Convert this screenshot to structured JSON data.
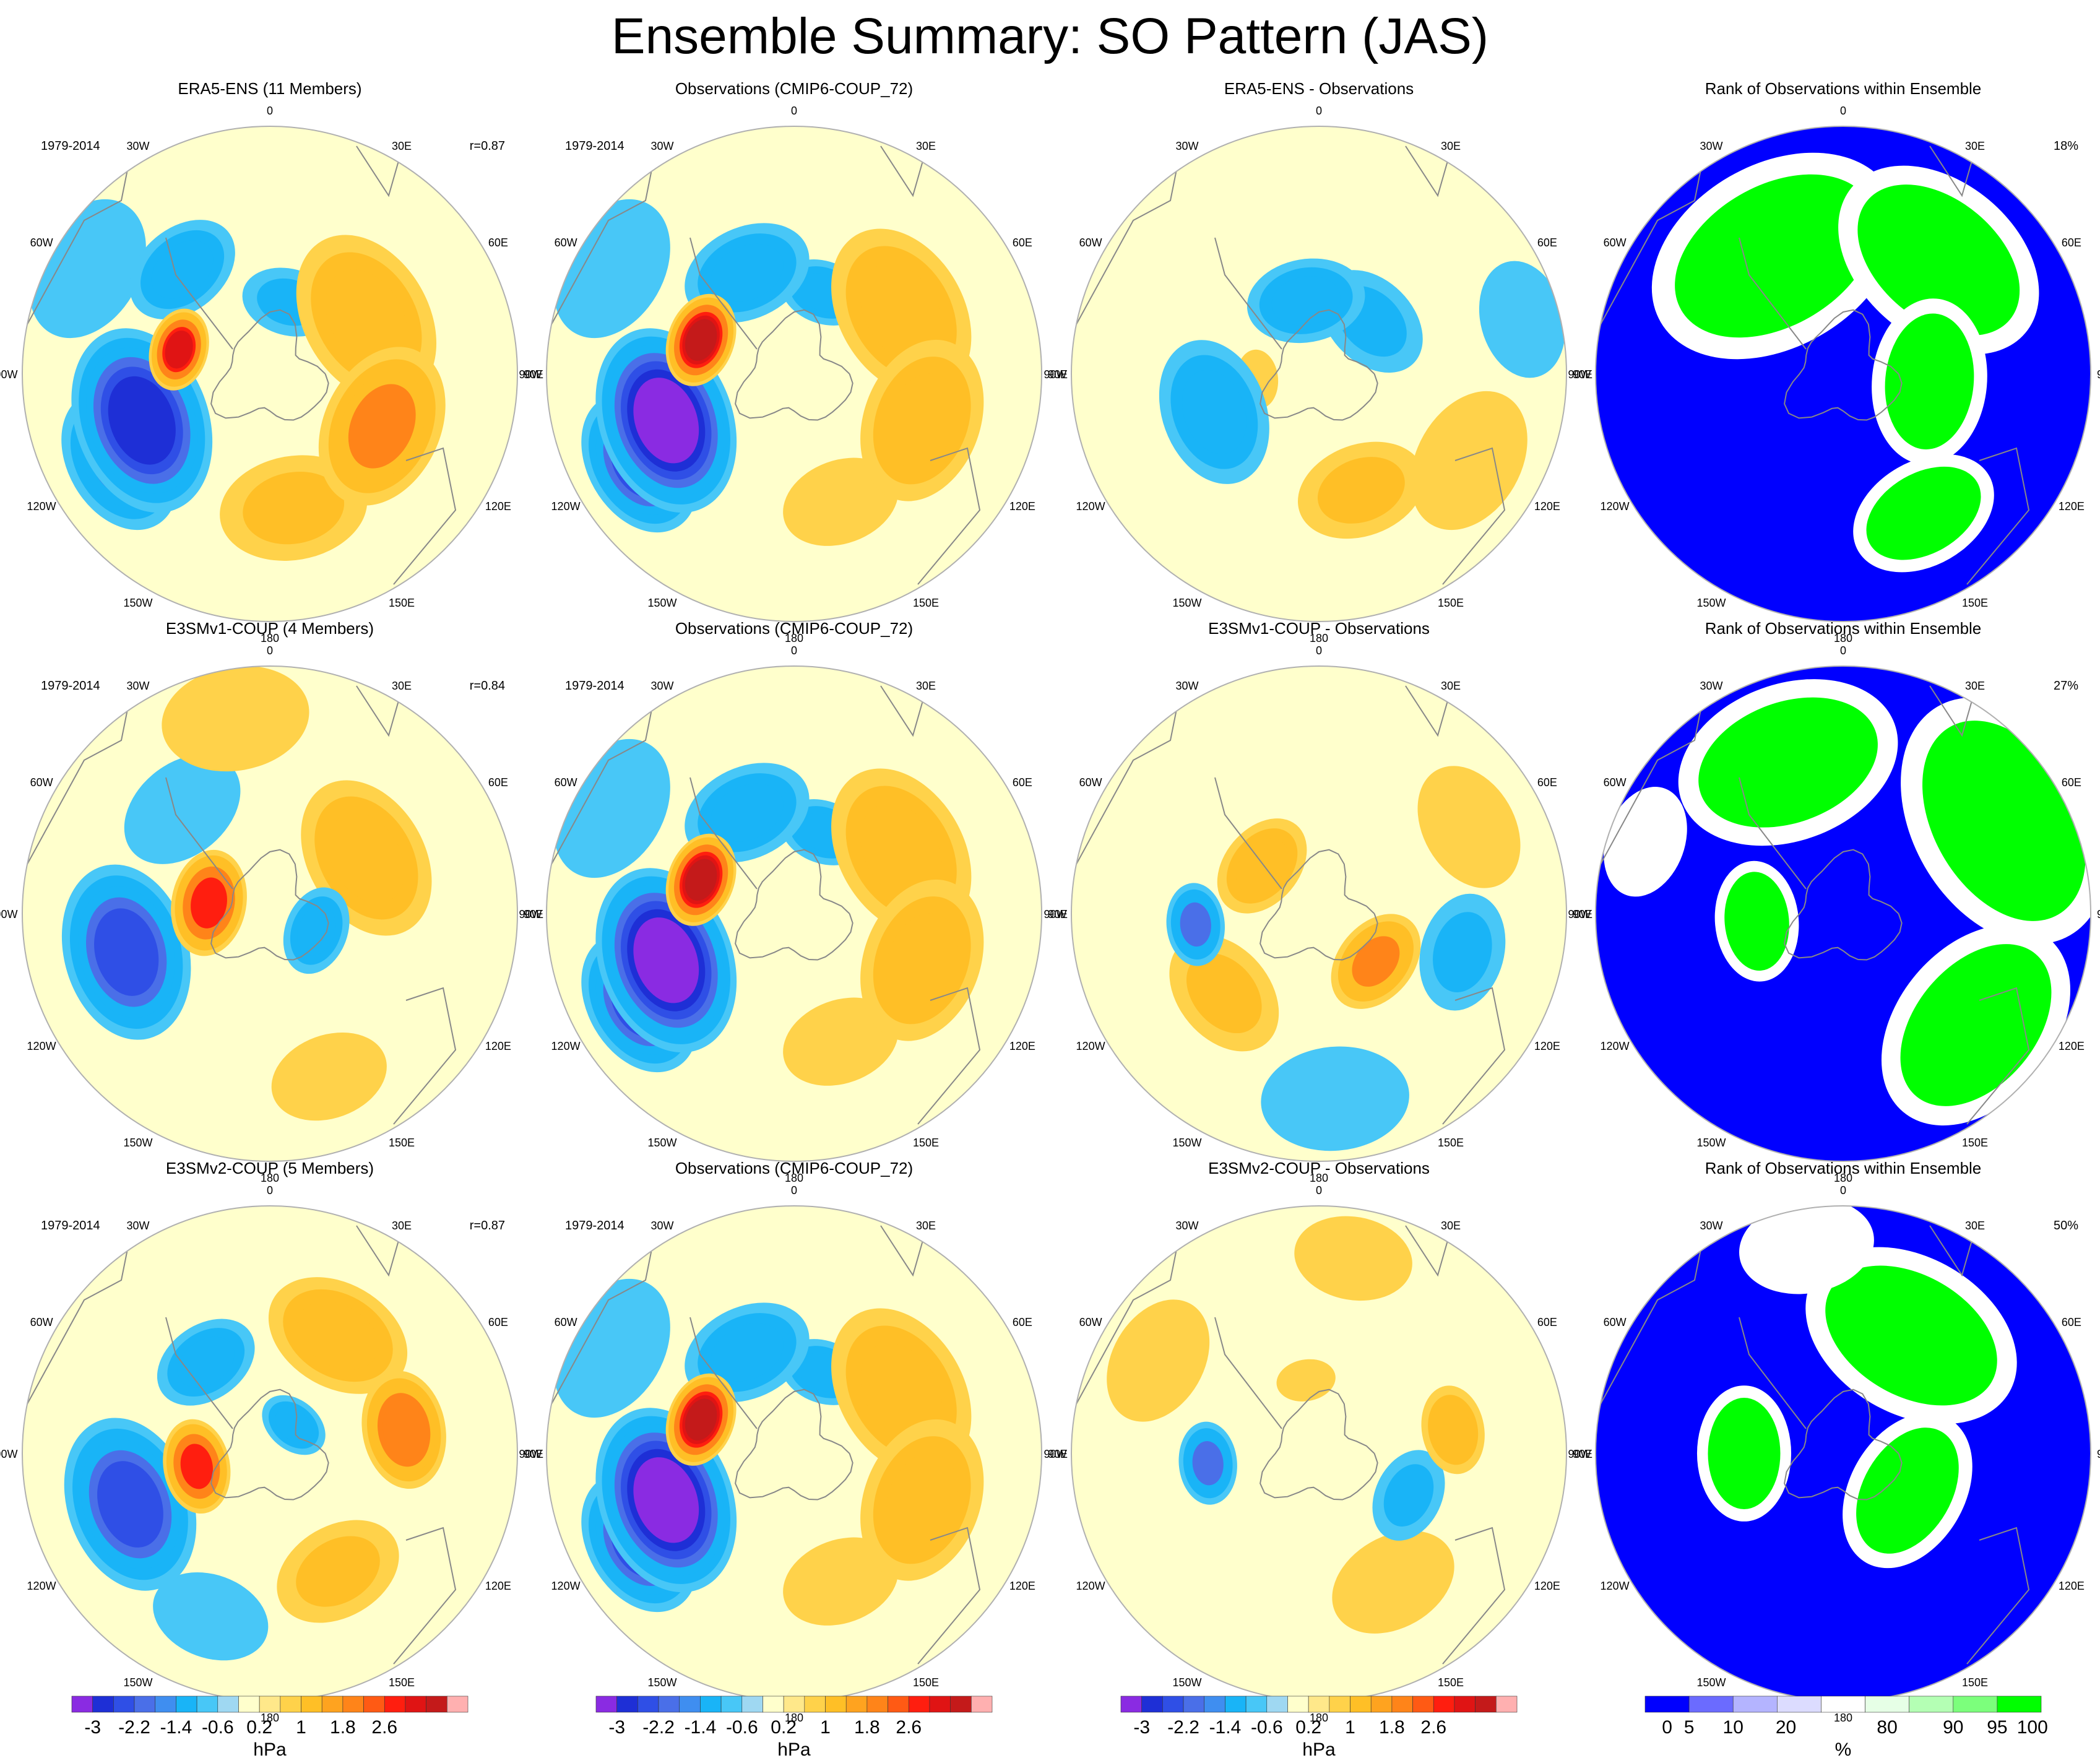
{
  "figure": {
    "title": "Ensemble Summary: SO Pattern (JAS)"
  },
  "colors": {
    "contour_palette": [
      "#8a2be2",
      "#1e2fd6",
      "#2f4fe6",
      "#4a6fe8",
      "#3f8ef0",
      "#19b4f7",
      "#48c7f7",
      "#9fd8f2",
      "#ffffcc",
      "#ffe88a",
      "#ffd24a",
      "#ffbf26",
      "#ffa31f",
      "#ff8419",
      "#ff5a14",
      "#ff1e0f",
      "#e01414",
      "#c41a1a",
      "#ffb0b0"
    ],
    "rank_palette": [
      "#0000ff",
      "#6b6bff",
      "#b4b4ff",
      "#dcdcff",
      "#ffffff",
      "#e6ffe6",
      "#b4ffb4",
      "#7cff7c",
      "#00ff00"
    ],
    "coastline": "#888888",
    "map_border": "#b0b0b0"
  },
  "chart_data": [
    {
      "type": "heatmap",
      "panel": "r1c1",
      "title": "ERA5-ENS (11 Members)",
      "period": "1979-2014",
      "stat": "r=0.87",
      "projection": "south polar stereographic",
      "units": "hPa",
      "lows": [
        "90W-150W (-2.6)",
        "45W-60E (-1.4)"
      ],
      "highs": [
        "60W-80W (+2.6)",
        "60E-120E (+1.4)"
      ]
    },
    {
      "type": "heatmap",
      "panel": "r1c2",
      "title": "Observations (CMIP6-COUP_72)",
      "period": "1979-2014",
      "projection": "south polar stereographic",
      "units": "hPa"
    },
    {
      "type": "heatmap",
      "panel": "r1c3",
      "title": "ERA5-ENS - Observations",
      "projection": "south polar stereographic",
      "units": "hPa"
    },
    {
      "type": "heatmap",
      "panel": "r1c4",
      "title": "Rank of Observations within Ensemble",
      "stat": "18%",
      "projection": "south polar stereographic",
      "units": "%"
    },
    {
      "type": "heatmap",
      "panel": "r2c1",
      "title": "E3SMv1-COUP (4 Members)",
      "period": "1979-2014",
      "stat": "r=0.84",
      "projection": "south polar stereographic",
      "units": "hPa"
    },
    {
      "type": "heatmap",
      "panel": "r2c2",
      "title": "Observations (CMIP6-COUP_72)",
      "period": "1979-2014",
      "projection": "south polar stereographic",
      "units": "hPa"
    },
    {
      "type": "heatmap",
      "panel": "r2c3",
      "title": "E3SMv1-COUP - Observations",
      "projection": "south polar stereographic",
      "units": "hPa"
    },
    {
      "type": "heatmap",
      "panel": "r2c4",
      "title": "Rank of Observations within Ensemble",
      "stat": "27%",
      "projection": "south polar stereographic",
      "units": "%"
    },
    {
      "type": "heatmap",
      "panel": "r3c1",
      "title": "E3SMv2-COUP (5 Members)",
      "period": "1979-2014",
      "stat": "r=0.87",
      "projection": "south polar stereographic",
      "units": "hPa"
    },
    {
      "type": "heatmap",
      "panel": "r3c2",
      "title": "Observations (CMIP6-COUP_72)",
      "period": "1979-2014",
      "projection": "south polar stereographic",
      "units": "hPa"
    },
    {
      "type": "heatmap",
      "panel": "r3c3",
      "title": "E3SMv2-COUP - Observations",
      "projection": "south polar stereographic",
      "units": "hPa"
    },
    {
      "type": "heatmap",
      "panel": "r3c4",
      "title": "Rank of Observations within Ensemble",
      "stat": "50%",
      "projection": "south polar stereographic",
      "units": "%"
    }
  ],
  "longitude_labels": [
    "0",
    "30E",
    "60E",
    "90E",
    "120E",
    "150E",
    "180",
    "150W",
    "120W",
    "90W",
    "60W",
    "30W"
  ],
  "colorbars": {
    "hpa": {
      "ticks": [
        "-3",
        "-2.2",
        "-1.4",
        "-0.6",
        "0.2",
        "1",
        "1.8",
        "2.6"
      ],
      "label": "hPa"
    },
    "rank": {
      "ticks": [
        "0",
        "5",
        "10",
        "20",
        "80",
        "90",
        "95",
        "100"
      ],
      "label": "%"
    }
  }
}
